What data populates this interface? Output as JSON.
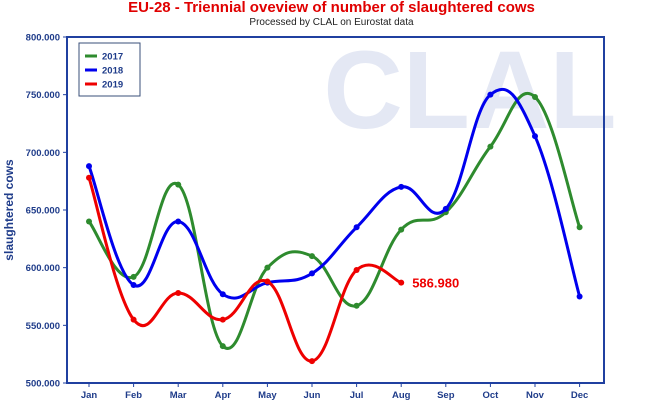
{
  "colors": {
    "series_2017": "#2e8b2e",
    "series_2018": "#0000ee",
    "series_2019": "#ee0000",
    "axis_text": "#1f3c8a",
    "frame": "#2040a0",
    "watermark": "#e4e8f4"
  },
  "watermark_text": "CLAL",
  "chart_data": {
    "type": "line",
    "title": "EU-28 - Triennial oveview of number of slaughtered cows",
    "subtitle": "Processed by CLAL on Eurostat data",
    "xlabel": "",
    "ylabel": "slaughtered cows",
    "categories": [
      "Jan",
      "Feb",
      "Mar",
      "Apr",
      "May",
      "Jun",
      "Jul",
      "Aug",
      "Sep",
      "Oct",
      "Nov",
      "Dec"
    ],
    "ylim": [
      500000,
      800000
    ],
    "yticks": [
      "500.000",
      "550.000",
      "600.000",
      "650.000",
      "700.000",
      "750.000",
      "800.000"
    ],
    "grid": false,
    "legend": "top-left",
    "series": [
      {
        "name": "2017",
        "color": "#2e8b2e",
        "values": [
          640000,
          592000,
          672000,
          532000,
          600000,
          610000,
          567000,
          633000,
          648000,
          705000,
          748000,
          635000
        ]
      },
      {
        "name": "2018",
        "color": "#0000ee",
        "values": [
          688000,
          585000,
          640000,
          577000,
          587000,
          595000,
          635000,
          670000,
          651000,
          750000,
          714000,
          575000
        ]
      },
      {
        "name": "2019",
        "color": "#ee0000",
        "values": [
          678000,
          555000,
          578000,
          555000,
          588000,
          519000,
          598000,
          586980,
          null,
          null,
          null,
          null
        ]
      }
    ],
    "annotations": [
      {
        "series": "2019",
        "label": "586.980"
      }
    ]
  }
}
